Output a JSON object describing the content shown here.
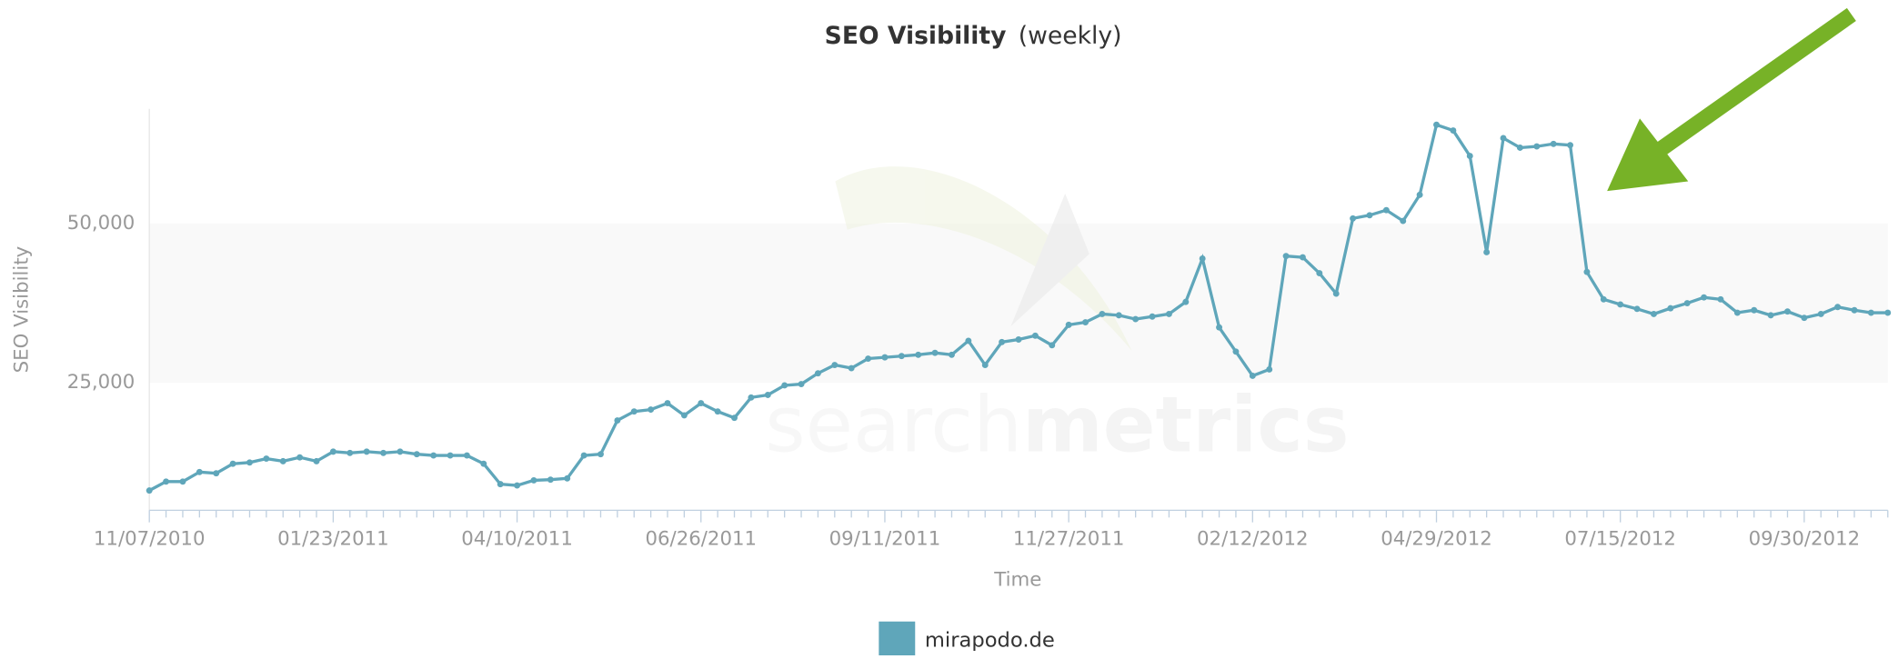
{
  "chart_data": {
    "type": "line",
    "title": "SEO Visibility",
    "subtitle": "(weekly)",
    "y_label": "SEO Visibility",
    "x_label": "Time",
    "watermark": [
      "search",
      "metrics"
    ],
    "categories": [
      "11/07/2010",
      null,
      null,
      null,
      null,
      null,
      null,
      null,
      null,
      null,
      null,
      "01/23/2011",
      null,
      null,
      null,
      null,
      null,
      null,
      null,
      null,
      null,
      null,
      "04/10/2011",
      null,
      null,
      null,
      null,
      null,
      null,
      null,
      null,
      null,
      null,
      "06/26/2011",
      null,
      null,
      null,
      null,
      null,
      null,
      null,
      null,
      null,
      null,
      "09/11/2011",
      null,
      null,
      null,
      null,
      null,
      null,
      null,
      null,
      null,
      null,
      "11/27/2011",
      null,
      null,
      null,
      null,
      null,
      null,
      null,
      null,
      null,
      null,
      "02/12/2012",
      null,
      null,
      null,
      null,
      null,
      null,
      null,
      null,
      null,
      null,
      "04/29/2012",
      null,
      null,
      null,
      null,
      null,
      null,
      null,
      null,
      null,
      null,
      "07/15/2012",
      null,
      null,
      null,
      null,
      null,
      null,
      null,
      null,
      null,
      null,
      "09/30/2012",
      null,
      null,
      null,
      null,
      null
    ],
    "series": [
      {
        "name": "mirapodo.de",
        "color": "#5fa6ba",
        "values": [
          8100,
          9500,
          9500,
          11000,
          10800,
          12300,
          12500,
          13100,
          12700,
          13300,
          12700,
          14200,
          14000,
          14200,
          14000,
          14200,
          13800,
          13600,
          13600,
          13600,
          12300,
          9100,
          8900,
          9700,
          9800,
          10000,
          13600,
          13800,
          19100,
          20500,
          20800,
          21800,
          19900,
          21800,
          20500,
          19500,
          22700,
          23100,
          24600,
          24800,
          26500,
          27800,
          27300,
          28800,
          29000,
          29200,
          29400,
          29700,
          29400,
          31600,
          27800,
          31400,
          31800,
          32400,
          30900,
          34100,
          34500,
          35800,
          35600,
          35000,
          35400,
          35800,
          37700,
          44500,
          33700,
          29900,
          26100,
          27100,
          44900,
          44700,
          42200,
          39000,
          50800,
          51300,
          52100,
          50400,
          54500,
          65500,
          64600,
          60600,
          45500,
          63400,
          61900,
          62100,
          62500,
          62300,
          42400,
          38100,
          37300,
          36600,
          35800,
          36700,
          37500,
          38400,
          38100,
          36000,
          36400,
          35600,
          36200,
          35200,
          35800,
          36900,
          36400,
          36000,
          36000
        ]
      }
    ],
    "ylim": [
      5000,
      68000
    ],
    "yticks": [
      {
        "value": 25000,
        "label": "25,000"
      },
      {
        "value": 50000,
        "label": "50,000"
      }
    ],
    "grid": false
  }
}
